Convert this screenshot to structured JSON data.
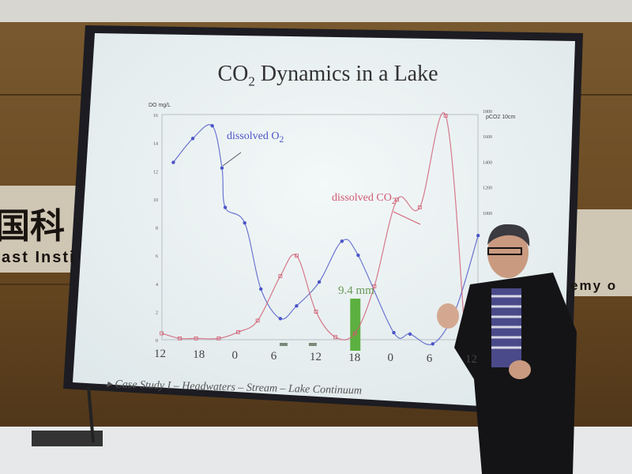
{
  "background_signage": {
    "left_chars": "国科",
    "left_text": "ast Insti",
    "right_text": "emy o"
  },
  "slide": {
    "title_main": "CO",
    "title_sub": "2",
    "title_rest": " Dynamics in a Lake",
    "footer": "Case Study I – Headwaters – Stream – Lake Continuum",
    "label_o2": "dissolved O",
    "label_o2_sub": "2",
    "label_co2": "dissolved CO",
    "label_co2_sub": "2",
    "rain_label": "9.4 mm"
  },
  "chart_data": {
    "type": "line",
    "left_axis_label": "DO mg/L",
    "right_axis_label": "pCO2 10cm",
    "left_ylim": [
      0,
      16
    ],
    "left_ticks": [
      "0",
      "2",
      "4",
      "6",
      "8",
      "10",
      "12",
      "14",
      "16"
    ],
    "right_ylim": [
      0,
      1800
    ],
    "right_ticks": [
      "1000",
      "1200",
      "1400",
      "1600",
      "1800"
    ],
    "x_tick_labels": [
      "12",
      "18",
      "0",
      "6",
      "12",
      "18",
      "0",
      "6",
      "12"
    ],
    "x_tick_hours": [
      12,
      18,
      24,
      30,
      36,
      42,
      48,
      54,
      60
    ],
    "series": [
      {
        "name": "dissolved O2",
        "axis": "left",
        "color": "#4a55c8",
        "x": [
          14,
          17,
          20,
          21.5,
          22,
          25,
          27.5,
          30.5,
          33,
          36.5,
          40,
          42.5,
          48,
          50.5,
          54,
          57.5,
          61
        ],
        "y": [
          12.6,
          14.3,
          15.2,
          12.2,
          9.4,
          8.3,
          3.6,
          1.5,
          2.4,
          4.1,
          7.0,
          6.0,
          0.5,
          0.4,
          -0.3,
          2.1,
          7.4
        ]
      },
      {
        "name": "dissolved CO2",
        "axis": "right",
        "color": "#d05a70",
        "x": [
          12.2,
          15,
          17.5,
          21,
          24,
          27,
          30.5,
          33,
          36,
          39,
          42,
          45,
          48.5,
          52,
          56,
          59
        ],
        "y": [
          50,
          10,
          10,
          10,
          60,
          150,
          500,
          660,
          220,
          20,
          50,
          420,
          1100,
          1040,
          1760,
          20
        ]
      }
    ],
    "rain_bars": [
      {
        "x": 31,
        "value": "small"
      },
      {
        "x": 35.5,
        "value": "small"
      },
      {
        "x": 42,
        "value": "9.4 mm"
      }
    ],
    "colors": {
      "rain": "#5cb040"
    }
  }
}
